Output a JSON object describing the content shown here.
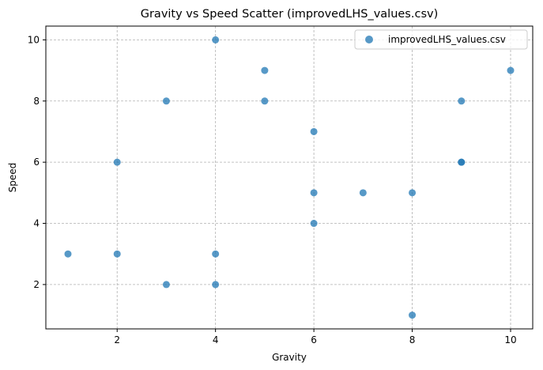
{
  "chart_data": {
    "type": "scatter",
    "title": "Gravity vs Speed Scatter (improvedLHS_values.csv)",
    "xlabel": "Gravity",
    "ylabel": "Speed",
    "xlim": [
      0.55,
      10.45
    ],
    "ylim": [
      0.55,
      10.45
    ],
    "xticks": [
      2,
      4,
      6,
      8,
      10
    ],
    "yticks": [
      2,
      4,
      6,
      8,
      10
    ],
    "grid": true,
    "legend_position": "top-right",
    "series": [
      {
        "name": "improvedLHS_values.csv",
        "color": "#1f77b4",
        "points": [
          {
            "x": 1,
            "y": 3
          },
          {
            "x": 2,
            "y": 6
          },
          {
            "x": 2,
            "y": 3
          },
          {
            "x": 3,
            "y": 8
          },
          {
            "x": 3,
            "y": 2
          },
          {
            "x": 4,
            "y": 10
          },
          {
            "x": 4,
            "y": 3
          },
          {
            "x": 4,
            "y": 2
          },
          {
            "x": 5,
            "y": 9
          },
          {
            "x": 5,
            "y": 8
          },
          {
            "x": 6,
            "y": 7
          },
          {
            "x": 6,
            "y": 5
          },
          {
            "x": 6,
            "y": 4
          },
          {
            "x": 7,
            "y": 5
          },
          {
            "x": 8,
            "y": 5
          },
          {
            "x": 8,
            "y": 1
          },
          {
            "x": 9,
            "y": 8
          },
          {
            "x": 9,
            "y": 6
          },
          {
            "x": 9,
            "y": 6
          },
          {
            "x": 10,
            "y": 9
          }
        ]
      }
    ]
  }
}
